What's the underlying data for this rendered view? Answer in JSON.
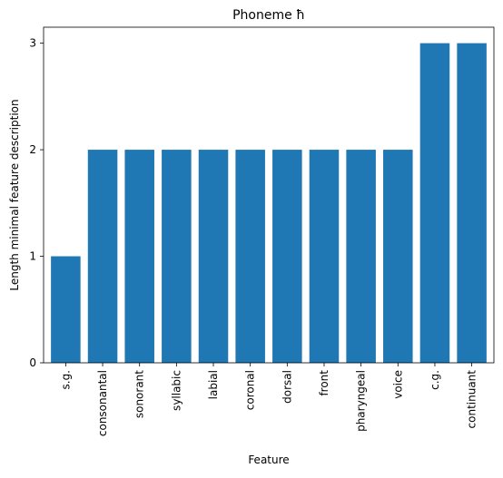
{
  "chart_data": {
    "type": "bar",
    "title": "Phoneme ħ",
    "xlabel": "Feature",
    "ylabel": "Length minimal feature description",
    "categories": [
      "s.g.",
      "consonantal",
      "sonorant",
      "syllabic",
      "labial",
      "coronal",
      "dorsal",
      "front",
      "pharyngeal",
      "voice",
      "c.g.",
      "continuant"
    ],
    "values": [
      1,
      2,
      2,
      2,
      2,
      2,
      2,
      2,
      2,
      2,
      3,
      3
    ],
    "yticks": [
      "0",
      "1",
      "2",
      "3"
    ],
    "ylim": [
      0,
      3.15
    ],
    "grid": false,
    "bar_color": "#1f77b4"
  }
}
